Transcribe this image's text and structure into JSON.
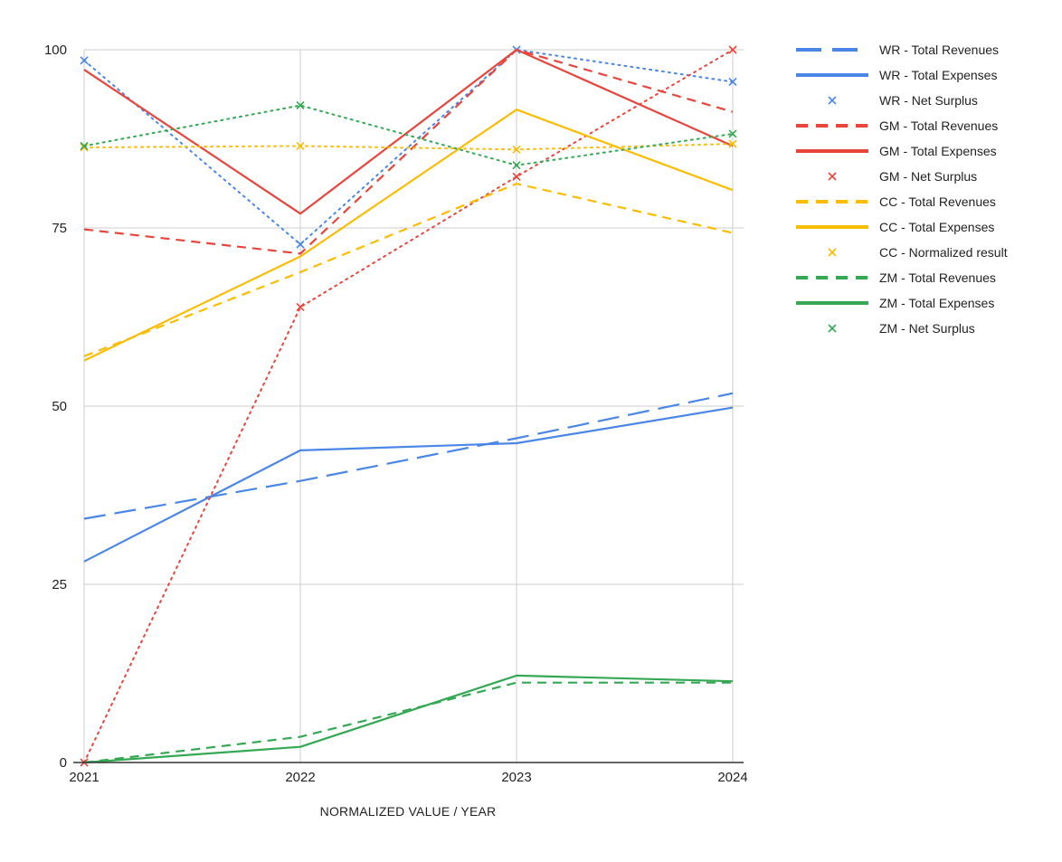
{
  "chart_data": {
    "type": "line",
    "xlabel": "NORMALIZED VALUE / YEAR",
    "ylabel": "",
    "x": [
      "2021",
      "2022",
      "2023",
      "2024"
    ],
    "ylim": [
      0,
      100
    ],
    "yticks": [
      "0",
      "25",
      "50",
      "75",
      "100"
    ],
    "grid": true,
    "legend_position": "right",
    "series": [
      {
        "name": "WR - Total Revenues",
        "values": [
          34.2,
          39.5,
          45.5,
          51.8
        ],
        "color": "#4a86e8",
        "style": "longdash",
        "marker": "none"
      },
      {
        "name": "WR - Total Expenses",
        "values": [
          28.2,
          43.8,
          44.8,
          49.8
        ],
        "color": "#4a86e8",
        "style": "solid",
        "marker": "none"
      },
      {
        "name": "WR - Net Surplus",
        "values": [
          98.5,
          72.7,
          100,
          95.5
        ],
        "color": "#4a86e8",
        "style": "dotted",
        "marker": "x"
      },
      {
        "name": "GM - Total Revenues",
        "values": [
          74.8,
          71.4,
          100,
          91.3
        ],
        "color": "#e8453c",
        "style": "dashed",
        "marker": "none"
      },
      {
        "name": "GM - Total Expenses",
        "values": [
          97.2,
          77.0,
          100,
          86.5
        ],
        "color": "#e8453c",
        "style": "solid",
        "marker": "none"
      },
      {
        "name": "GM - Net Surplus",
        "values": [
          0,
          63.9,
          82.2,
          100
        ],
        "color": "#e8453c",
        "style": "dotted",
        "marker": "x"
      },
      {
        "name": "CC - Total Revenues",
        "values": [
          57.0,
          68.8,
          81.2,
          74.3
        ],
        "color": "#fbbc04",
        "style": "dashed",
        "marker": "none"
      },
      {
        "name": "CC - Total Expenses",
        "values": [
          56.4,
          71.0,
          91.6,
          80.3
        ],
        "color": "#fbbc04",
        "style": "solid",
        "marker": "none"
      },
      {
        "name": "CC - Normalized result",
        "values": [
          86.3,
          86.5,
          86.0,
          86.8
        ],
        "color": "#fbbc04",
        "style": "dotted",
        "marker": "x"
      },
      {
        "name": "ZM - Total Revenues",
        "values": [
          0,
          3.6,
          11.2,
          11.2
        ],
        "color": "#34a853",
        "style": "dashed",
        "marker": "none"
      },
      {
        "name": "ZM - Total Expenses",
        "values": [
          0,
          2.2,
          12.2,
          11.4
        ],
        "color": "#34a853",
        "style": "solid",
        "marker": "none"
      },
      {
        "name": "ZM - Net Surplus",
        "values": [
          86.5,
          92.2,
          83.8,
          88.2
        ],
        "color": "#34a853",
        "style": "dotted",
        "marker": "x"
      }
    ]
  }
}
